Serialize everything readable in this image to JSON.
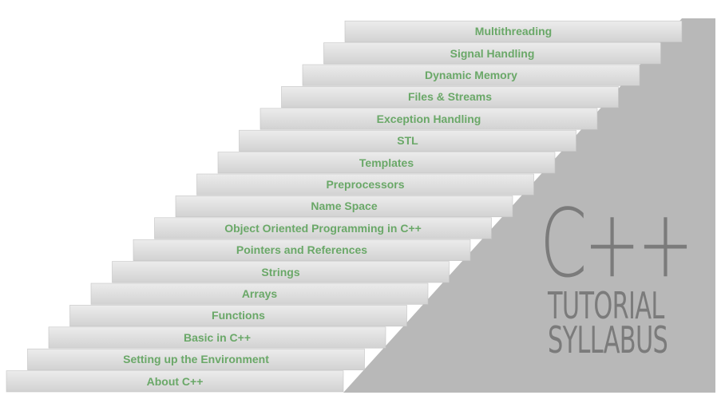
{
  "colors": {
    "background": "#ffffff",
    "wall": "#b8b8b8",
    "step_top": "#ececec",
    "step_bottom": "#d2d2d2",
    "step_edge": "#c4c4c4",
    "label": "#6aa868",
    "brand_text": "#7b7b7b"
  },
  "steps": [
    {
      "label": "About C++"
    },
    {
      "label": "Setting up the Environment"
    },
    {
      "label": "Basic in C++"
    },
    {
      "label": "Functions"
    },
    {
      "label": "Arrays"
    },
    {
      "label": "Strings"
    },
    {
      "label": "Pointers and References"
    },
    {
      "label": "Object Oriented Programming in C++"
    },
    {
      "label": "Name Space"
    },
    {
      "label": "Preprocessors"
    },
    {
      "label": "Templates"
    },
    {
      "label": "STL"
    },
    {
      "label": "Exception Handling"
    },
    {
      "label": "Files & Streams"
    },
    {
      "label": "Dynamic Memory"
    },
    {
      "label": "Signal Handling"
    },
    {
      "label": "Multithreading"
    }
  ],
  "brand": {
    "title": "C++",
    "subtitle_line1": "TUTORIAL",
    "subtitle_line2": "SYLLABUS"
  }
}
